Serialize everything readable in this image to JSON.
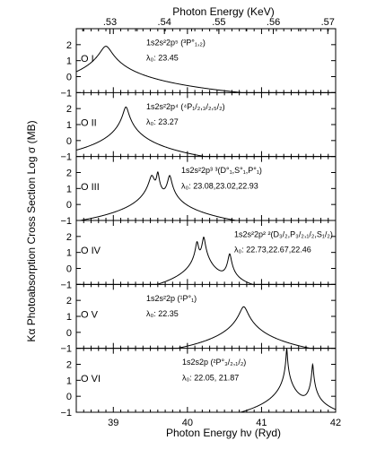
{
  "chart_data": {
    "type": "line",
    "layout": "stacked-panels",
    "xlabel": "Photon Energy hν (Ryd)",
    "x2label": "Photon Energy (KeV)",
    "ylabel": "Kα Photoabsorption Cross Section Log σ (MB)",
    "xlim": [
      38.5,
      42.0
    ],
    "xticks": [
      39,
      40,
      41,
      42
    ],
    "xticklabels": [
      "39",
      "40",
      "41",
      "42"
    ],
    "x2ticks_kev": [
      0.53,
      0.54,
      0.55,
      0.56,
      0.57
    ],
    "x2ticklabels": [
      ".53",
      ".54",
      ".55",
      ".56",
      ".57"
    ],
    "ylim": [
      -1,
      3
    ],
    "yticks": [
      -1,
      0,
      1,
      2
    ],
    "yticklabels": [
      "−1",
      "0",
      "1",
      "2"
    ],
    "panels": [
      {
        "ion": "O I",
        "config": "1s2s²2p⁵ (³P°₁,₂)",
        "lambda_text": "λ₀: 23.45",
        "lines": [
          {
            "x": 38.9,
            "peak": 1.9,
            "width": 0.065
          }
        ]
      },
      {
        "ion": "O II",
        "config": "1s2s²2p⁴ (⁴P₁/₂,₃/₂,₅/₂)",
        "lambda_text": "λ₀: 23.27",
        "lines": [
          {
            "x": 39.17,
            "peak": 2.1,
            "width": 0.03
          }
        ]
      },
      {
        "ion": "O III",
        "config": "1s2s²2p³ ³(D°₁,S°₁,P°₁)",
        "lambda_text": "λ₀: 23.08,23.02,22.93",
        "lines": [
          {
            "x": 39.52,
            "peak": 1.8,
            "width": 0.03
          },
          {
            "x": 39.6,
            "peak": 2.0,
            "width": 0.014
          },
          {
            "x": 39.76,
            "peak": 1.8,
            "width": 0.022
          }
        ]
      },
      {
        "ion": "O IV",
        "config": "1s2s²2p² ²(D₃/₂,P₃/₂,₁/₂,S₁/₂)",
        "lambda_text": "λ₀: 22.73,22.67,22.46",
        "lines": [
          {
            "x": 40.13,
            "peak": 1.65,
            "width": 0.016
          },
          {
            "x": 40.22,
            "peak": 1.95,
            "width": 0.016
          },
          {
            "x": 40.57,
            "peak": 0.9,
            "width": 0.018
          }
        ]
      },
      {
        "ion": "O V",
        "config": "1s2s²2p (¹P°₁)",
        "lambda_text": "λ₀: 22.35",
        "lines": [
          {
            "x": 40.76,
            "peak": 1.6,
            "width": 0.045
          }
        ]
      },
      {
        "ion": "O VI",
        "config": "1s2s2p (²P°₃/₂,₁/₂)",
        "lambda_text": "λ₀: 22.05, 21.87",
        "lines": [
          {
            "x": 41.34,
            "peak": 3.0,
            "width": 0.006
          },
          {
            "x": 41.69,
            "peak": 2.0,
            "width": 0.008
          }
        ]
      }
    ]
  }
}
